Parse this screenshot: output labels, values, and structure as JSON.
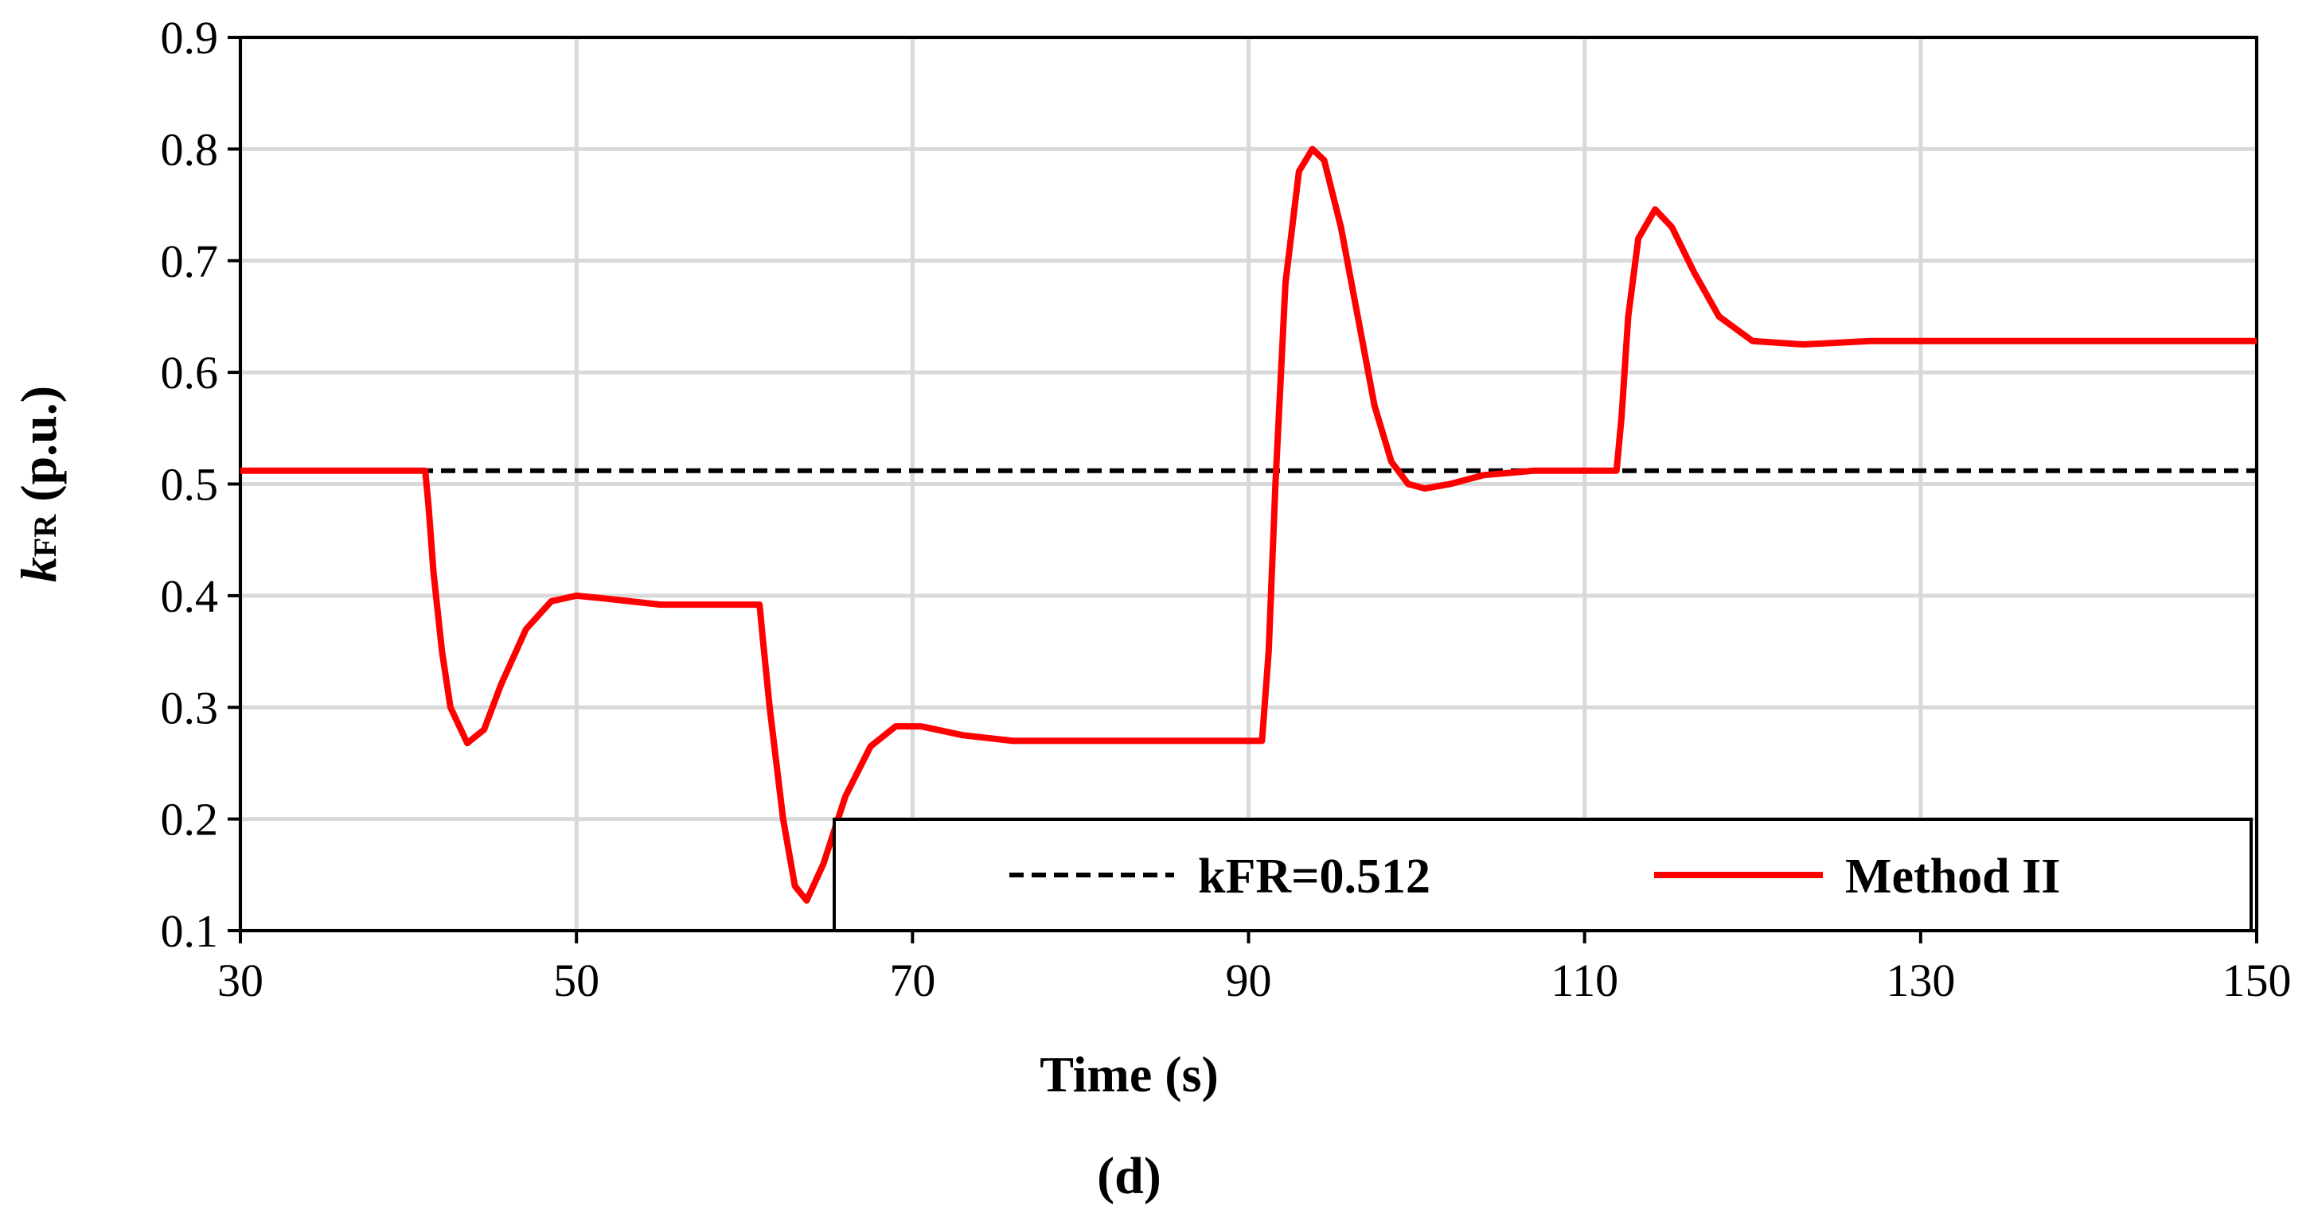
{
  "chart_data": {
    "type": "line",
    "panel_label": "(d)",
    "xlabel": "Time (s)",
    "ylabel": {
      "italic": "k",
      "subscript": "FR",
      "rest": " (p.u.)"
    },
    "xlim": [
      30,
      150
    ],
    "ylim": [
      0.1,
      0.9
    ],
    "x_ticks": [
      30,
      50,
      70,
      90,
      110,
      130,
      150
    ],
    "y_ticks": [
      0.1,
      0.2,
      0.3,
      0.4,
      0.5,
      0.6,
      0.7,
      0.8,
      0.9
    ],
    "y_tick_labels": [
      "0.1",
      "0.2",
      "0.3",
      "0.4",
      "0.5",
      "0.6",
      "0.7",
      "0.8",
      "0.9"
    ],
    "grid": true,
    "legend_position": "bottom-right",
    "series": [
      {
        "name": "kFR=0.512",
        "style": "dashed",
        "color": "#000000",
        "x": [
          30,
          150
        ],
        "y": [
          0.512,
          0.512
        ]
      },
      {
        "name": "Method II",
        "style": "solid",
        "color": "#ff0000",
        "x": [
          30,
          41,
          41.2,
          41.5,
          42,
          42.5,
          43.5,
          44.5,
          45.5,
          47,
          48.5,
          50,
          52,
          55,
          58,
          60.9,
          61.1,
          61.5,
          62.3,
          63,
          63.7,
          64.7,
          66,
          67.5,
          69,
          70.5,
          73,
          76,
          80,
          85,
          90.8,
          91.2,
          91.6,
          92.2,
          93,
          93.8,
          94.5,
          95.5,
          96.5,
          97.5,
          98.5,
          99.5,
          100.5,
          102,
          104,
          107,
          110,
          111.9,
          112.2,
          112.6,
          113.2,
          114.2,
          115.2,
          116.5,
          118,
          120,
          123,
          127,
          135,
          150
        ],
        "y": [
          0.512,
          0.512,
          0.48,
          0.42,
          0.35,
          0.3,
          0.268,
          0.28,
          0.32,
          0.37,
          0.395,
          0.4,
          0.397,
          0.392,
          0.392,
          0.392,
          0.36,
          0.3,
          0.2,
          0.14,
          0.127,
          0.16,
          0.22,
          0.265,
          0.283,
          0.283,
          0.275,
          0.27,
          0.27,
          0.27,
          0.27,
          0.35,
          0.5,
          0.68,
          0.78,
          0.8,
          0.79,
          0.73,
          0.65,
          0.57,
          0.52,
          0.5,
          0.496,
          0.5,
          0.508,
          0.512,
          0.512,
          0.512,
          0.56,
          0.65,
          0.72,
          0.746,
          0.73,
          0.69,
          0.65,
          0.628,
          0.625,
          0.628,
          0.628,
          0.628
        ]
      }
    ]
  }
}
